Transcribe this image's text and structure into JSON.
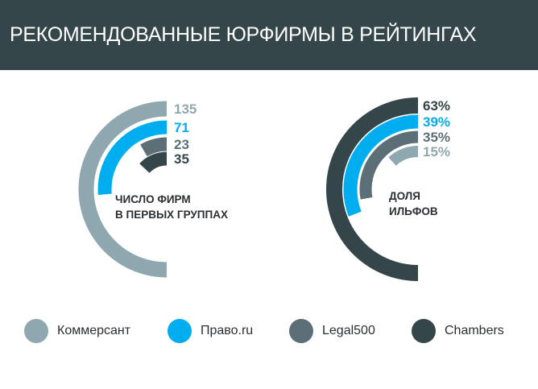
{
  "header": {
    "title": "РЕКОМЕНДОВАННЫЕ ЮРФИРМЫ В РЕЙТИНГАХ"
  },
  "colors": {
    "header_bg": "#35464a",
    "kommersant": "#8fa8b0",
    "pravo": "#00adef",
    "legal500": "#5c6f76",
    "chambers": "#35464a"
  },
  "legend": [
    {
      "label": "Коммерсант",
      "color": "#8fa8b0"
    },
    {
      "label": "Право.ru",
      "color": "#00adef"
    },
    {
      "label": "Legal500",
      "color": "#5c6f76"
    },
    {
      "label": "Chambers",
      "color": "#35464a"
    }
  ],
  "chart_data": [
    {
      "type": "radial-bar",
      "label_line1": "ЧИСЛО ФИРМ",
      "label_line2": "В ПЕРВЫХ ГРУППАХ",
      "max": 135,
      "series": [
        {
          "name": "Коммерсант",
          "value": 135,
          "display": "135",
          "color": "#8fa8b0"
        },
        {
          "name": "Право.ru",
          "value": 71,
          "display": "71",
          "color": "#00adef"
        },
        {
          "name": "Legal500",
          "value": 23,
          "display": "23",
          "color": "#5c6f76"
        },
        {
          "name": "Chambers",
          "value": 35,
          "display": "35",
          "color": "#35464a"
        }
      ]
    },
    {
      "type": "radial-bar",
      "label_line1": "ДОЛЯ",
      "label_line2": "ИЛЬФОВ",
      "max": 63,
      "series": [
        {
          "name": "Chambers",
          "value": 63,
          "display": "63%",
          "color": "#35464a"
        },
        {
          "name": "Право.ru",
          "value": 39,
          "display": "39%",
          "color": "#00adef"
        },
        {
          "name": "Legal500",
          "value": 35,
          "display": "35%",
          "color": "#5c6f76"
        },
        {
          "name": "Коммерсант",
          "value": 15,
          "display": "15%",
          "color": "#8fa8b0"
        }
      ]
    }
  ]
}
